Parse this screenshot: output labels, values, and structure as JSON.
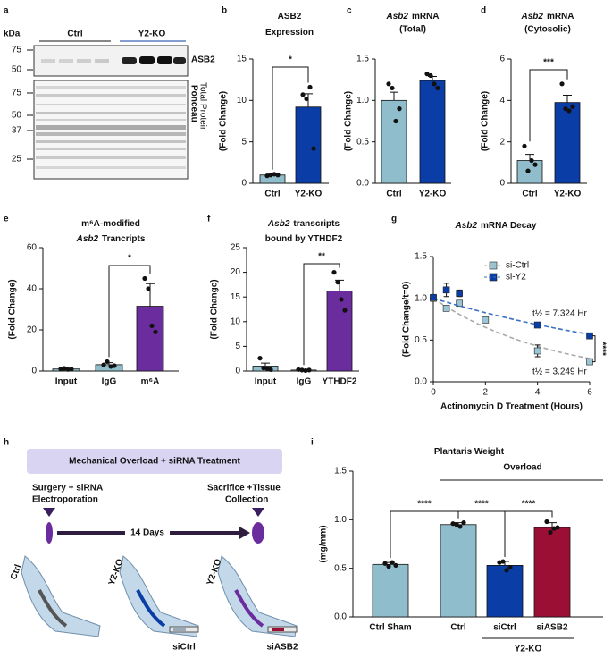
{
  "panel_labels": [
    "a",
    "b",
    "c",
    "d",
    "e",
    "f",
    "g",
    "h",
    "i"
  ],
  "blot": {
    "unit": "kDa",
    "groups": [
      "Ctrl",
      "Y2-KO"
    ],
    "top_ladder": [
      75,
      50
    ],
    "bottom_ladder": [
      75,
      50,
      37,
      25
    ],
    "target": "ASB2",
    "stain": "Ponceau",
    "stain_note": "Total Protein"
  },
  "schematic": {
    "title": "Mechanical Overload + siRNA Treatment",
    "start": [
      "Surgery + siRNA",
      "Electroporation"
    ],
    "end": [
      "Sacrifice +Tissue",
      "Collection"
    ],
    "duration": "14 Days",
    "legs": [
      "Ctrl",
      "Y2-KO",
      "Y2-KO"
    ],
    "treatments": [
      "siCtrl",
      "siASB2"
    ]
  },
  "chart_data": [
    {
      "type": "bar",
      "title": [
        [
          {
            "text": "ASB2"
          }
        ],
        [
          {
            "text": "Expression"
          }
        ]
      ],
      "ylabel": "(Fold Change)",
      "categories": [
        "Ctrl",
        "Y2-KO"
      ],
      "values": [
        1.0,
        9.2
      ],
      "errors": [
        0.1,
        1.6
      ],
      "points": [
        [
          0.9,
          1.0,
          1.1,
          1.0
        ],
        [
          10.7,
          10.2,
          11.6,
          4.2
        ]
      ],
      "colors": [
        "#8fbdcb",
        "#0b3da6"
      ],
      "ylim": [
        0,
        15
      ],
      "yticks": [
        0,
        5,
        10,
        15
      ],
      "significance": [
        "*"
      ]
    },
    {
      "type": "bar",
      "title": [
        [
          {
            "text": "Asb2",
            "italic": true
          },
          {
            "text": "mRNA"
          }
        ]
      ],
      "subtitle": "(Total)",
      "ylabel": "(Fold Change)",
      "categories": [
        "Ctrl",
        "Y2-KO"
      ],
      "values": [
        1.0,
        1.24
      ],
      "errors": [
        0.1,
        0.05
      ],
      "points": [
        [
          1.2,
          1.15,
          0.75,
          0.9
        ],
        [
          1.32,
          1.3,
          1.2,
          1.15
        ]
      ],
      "colors": [
        "#8fbdcb",
        "#0b3da6"
      ],
      "ylim": [
        0,
        1.5
      ],
      "yticks": [
        {
          "value": 0,
          "label": "0.0"
        },
        0.5,
        {
          "value": 1,
          "label": "1.0"
        },
        1.5
      ],
      "significance": []
    },
    {
      "type": "bar",
      "title": [
        [
          {
            "text": "Asb2",
            "italic": true
          },
          {
            "text": "mRNA"
          }
        ]
      ],
      "subtitle": "(Cytosolic)",
      "ylabel": "(Fold Change)",
      "categories": [
        "Ctrl",
        "Y2-KO"
      ],
      "values": [
        1.1,
        3.9
      ],
      "errors": [
        0.3,
        0.35
      ],
      "points": [
        [
          1.8,
          0.6,
          1.1,
          0.9
        ],
        [
          4.8,
          3.6,
          3.5,
          3.7
        ]
      ],
      "colors": [
        "#8fbdcb",
        "#0b3da6"
      ],
      "ylim": [
        0,
        6
      ],
      "yticks": [
        0,
        2,
        4,
        6
      ],
      "significance": [
        "***"
      ]
    },
    {
      "type": "bar",
      "title": [
        [
          {
            "text": "m⁶A-modified"
          }
        ],
        [
          {
            "text": "Asb2",
            "italic": true
          },
          {
            "text": "Trancripts"
          }
        ]
      ],
      "ylabel": "(Fold Change)",
      "categories": [
        "Input",
        "IgG",
        "m⁶A"
      ],
      "values": [
        1.0,
        3.1,
        31.5
      ],
      "errors": [
        0.3,
        1.0,
        11
      ],
      "points": [
        [
          1.0,
          1.3,
          0.8,
          0.9
        ],
        [
          3.0,
          4.6,
          2.2,
          2.6
        ],
        [
          45,
          40,
          22,
          19
        ]
      ],
      "colors": [
        "#8fbdcb",
        "#8fbdcb",
        "#6b2d9e"
      ],
      "ylim": [
        0,
        60
      ],
      "yticks": [
        0,
        20,
        40,
        60
      ],
      "significance": [
        "*"
      ]
    },
    {
      "type": "bar",
      "title": [
        [
          {
            "text": "Asb2",
            "italic": true
          },
          {
            "text": "transcripts"
          }
        ],
        [
          {
            "text": "bound by YTHDF2"
          }
        ]
      ],
      "ylabel": "(Fold Change)",
      "categories": [
        "Input",
        "IgG",
        "YTHDF2"
      ],
      "values": [
        1.0,
        0.2,
        16.2
      ],
      "errors": [
        0.6,
        0.1,
        2.2
      ],
      "points": [
        [
          2.6,
          0.6,
          0.5,
          0.3
        ],
        [
          0.3,
          0.2,
          0.1,
          0.2
        ],
        [
          20,
          18,
          14.5,
          12.3
        ]
      ],
      "colors": [
        "#8fbdcb",
        "#8fbdcb",
        "#6b2d9e"
      ],
      "ylim": [
        0,
        25
      ],
      "yticks": [
        0,
        5,
        10,
        15,
        20,
        25
      ],
      "significance": [
        "**"
      ]
    },
    {
      "type": "scatter",
      "title": [
        [
          {
            "text": "Asb2",
            "italic": true
          },
          {
            "text": "mRNA Decay"
          }
        ]
      ],
      "ylabel": "(Fold Change/t=0)",
      "xlabel": "Actinomycin D Treatment (Hours)",
      "xlim": [
        0,
        6
      ],
      "xticks": [
        0,
        2,
        4,
        6
      ],
      "ylim": [
        0,
        1.5
      ],
      "yticks": [
        {
          "value": 0,
          "label": "0.0"
        },
        0.5,
        {
          "value": 1,
          "label": "1.0"
        },
        1.5
      ],
      "legend": "upper right",
      "series": [
        {
          "name": "si-Ctrl",
          "color": "#9cc5d3",
          "fit_color": "#aaaaaa",
          "x": [
            0,
            0.5,
            1,
            2,
            4,
            6
          ],
          "values": [
            1.0,
            0.88,
            0.94,
            0.74,
            0.37,
            0.24
          ],
          "errors": [
            0.02,
            0.03,
            0.03,
            0.02,
            0.07,
            0.02
          ],
          "half_life": 3.249,
          "half_life_label": "t½ = 3.249 Hr"
        },
        {
          "name": "si-Y2",
          "color": "#0b3da6",
          "fit_color": "#3a6fc4",
          "x": [
            0,
            0.5,
            1,
            4,
            6
          ],
          "values": [
            1.01,
            1.1,
            1.06,
            0.68,
            0.55
          ],
          "errors": [
            0.03,
            0.08,
            0.04,
            0.02,
            0.02
          ],
          "half_life": 7.324,
          "half_life_label": "t½ = 7.324 Hr"
        }
      ],
      "significance": "****"
    },
    {
      "type": "bar",
      "title": [
        [
          {
            "text": "Plantaris Weight"
          }
        ]
      ],
      "ylabel": "(mg/mm)",
      "categories": [
        "Ctrl Sham",
        "Ctrl",
        "siCtrl",
        "siASB2"
      ],
      "values": [
        0.54,
        0.95,
        0.53,
        0.92
      ],
      "errors": [
        0.02,
        0.02,
        0.04,
        0.05
      ],
      "points": [
        [
          0.55,
          0.52,
          0.56,
          0.53
        ],
        [
          0.96,
          0.95,
          0.93,
          0.97
        ],
        [
          0.56,
          0.57,
          0.48,
          0.51
        ],
        [
          0.98,
          0.87,
          0.91,
          0.92
        ]
      ],
      "colors": [
        "#8fbdcb",
        "#8fbdcb",
        "#0b3da6",
        "#9c0f35"
      ],
      "ylim": [
        0,
        1.5
      ],
      "yticks": [
        {
          "value": 0,
          "label": "0.0"
        },
        0.5,
        {
          "value": 1,
          "label": "1.0"
        },
        1.5
      ],
      "significance": [
        "****",
        "****",
        "****"
      ],
      "annotations": [
        "Overload",
        "Y2-KO"
      ]
    }
  ]
}
